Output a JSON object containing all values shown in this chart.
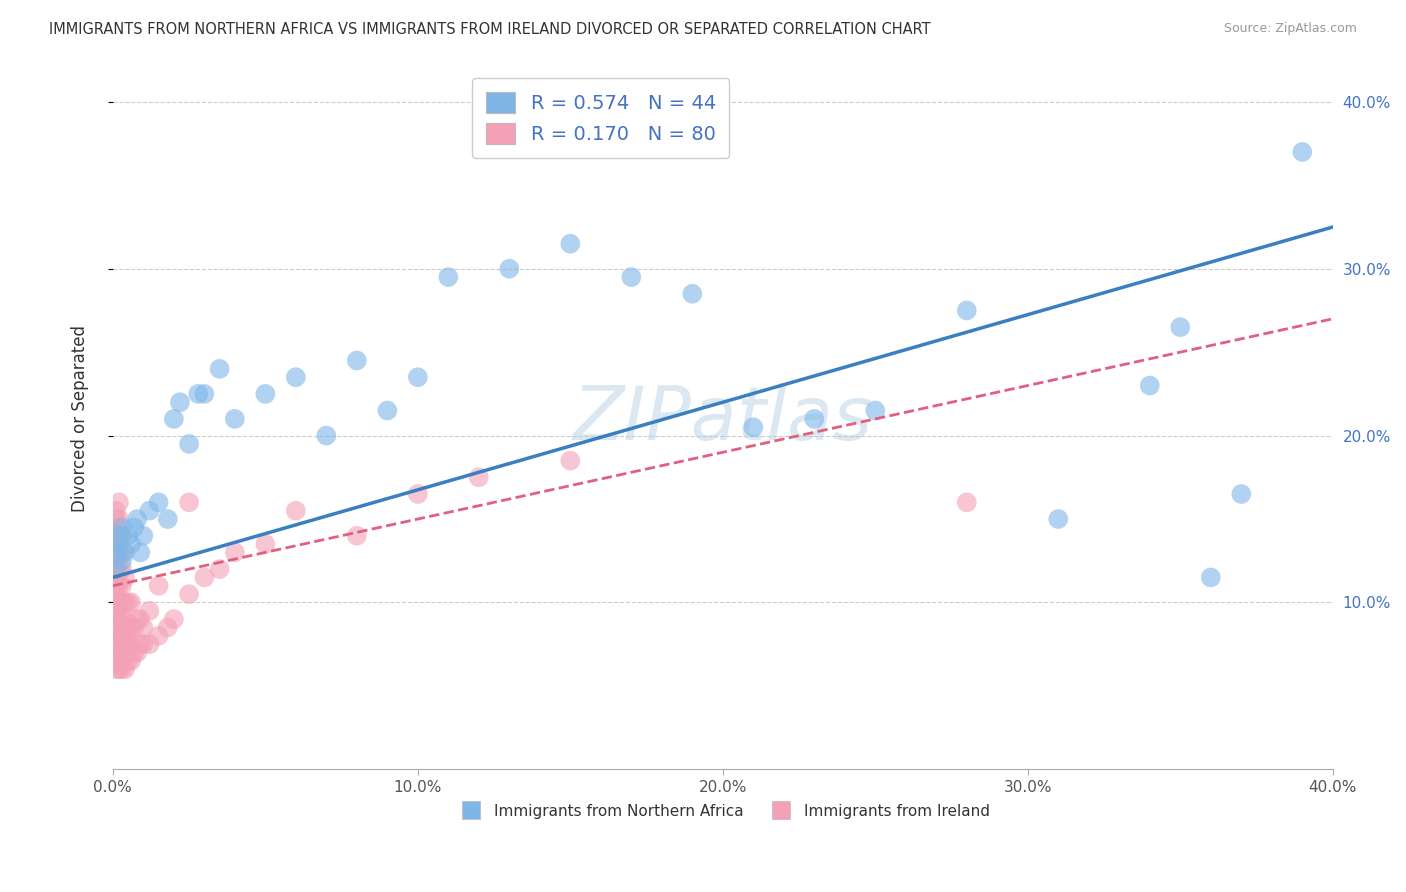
{
  "title": "IMMIGRANTS FROM NORTHERN AFRICA VS IMMIGRANTS FROM IRELAND DIVORCED OR SEPARATED CORRELATION CHART",
  "source": "Source: ZipAtlas.com",
  "xlabel_blue": "Immigrants from Northern Africa",
  "xlabel_pink": "Immigrants from Ireland",
  "ylabel": "Divorced or Separated",
  "watermark": "ZIPatlas",
  "blue_R": 0.574,
  "blue_N": 44,
  "pink_R": 0.17,
  "pink_N": 80,
  "xlim": [
    0.0,
    0.4
  ],
  "ylim": [
    0.0,
    0.42
  ],
  "blue_color": "#7EB6E8",
  "pink_color": "#F4A0B5",
  "blue_line_color": "#3A7FC1",
  "pink_line_color": "#E06080",
  "legend_text_color": "#4472C4",
  "blue_scatter_x": [
    0.001,
    0.001,
    0.002,
    0.002,
    0.003,
    0.003,
    0.004,
    0.005,
    0.006,
    0.007,
    0.008,
    0.009,
    0.01,
    0.012,
    0.015,
    0.018,
    0.02,
    0.022,
    0.025,
    0.028,
    0.03,
    0.035,
    0.04,
    0.05,
    0.06,
    0.07,
    0.08,
    0.09,
    0.1,
    0.11,
    0.13,
    0.15,
    0.17,
    0.19,
    0.21,
    0.23,
    0.25,
    0.28,
    0.31,
    0.34,
    0.35,
    0.36,
    0.37,
    0.39
  ],
  "blue_scatter_y": [
    0.12,
    0.13,
    0.14,
    0.135,
    0.125,
    0.145,
    0.13,
    0.14,
    0.135,
    0.145,
    0.15,
    0.13,
    0.14,
    0.155,
    0.16,
    0.15,
    0.21,
    0.22,
    0.195,
    0.225,
    0.225,
    0.24,
    0.21,
    0.225,
    0.235,
    0.2,
    0.245,
    0.215,
    0.235,
    0.295,
    0.3,
    0.315,
    0.295,
    0.285,
    0.205,
    0.21,
    0.215,
    0.275,
    0.15,
    0.23,
    0.265,
    0.115,
    0.165,
    0.37
  ],
  "pink_scatter_x": [
    0.001,
    0.001,
    0.001,
    0.001,
    0.001,
    0.001,
    0.001,
    0.001,
    0.001,
    0.001,
    0.001,
    0.001,
    0.001,
    0.001,
    0.001,
    0.001,
    0.001,
    0.001,
    0.001,
    0.002,
    0.002,
    0.002,
    0.002,
    0.002,
    0.002,
    0.002,
    0.002,
    0.002,
    0.002,
    0.002,
    0.002,
    0.003,
    0.003,
    0.003,
    0.003,
    0.003,
    0.003,
    0.003,
    0.003,
    0.003,
    0.004,
    0.004,
    0.004,
    0.004,
    0.004,
    0.004,
    0.005,
    0.005,
    0.005,
    0.005,
    0.006,
    0.006,
    0.006,
    0.006,
    0.007,
    0.007,
    0.008,
    0.008,
    0.009,
    0.009,
    0.01,
    0.01,
    0.012,
    0.012,
    0.015,
    0.015,
    0.018,
    0.02,
    0.025,
    0.025,
    0.03,
    0.035,
    0.04,
    0.05,
    0.06,
    0.08,
    0.1,
    0.12,
    0.15,
    0.28
  ],
  "pink_scatter_y": [
    0.06,
    0.07,
    0.075,
    0.08,
    0.085,
    0.09,
    0.095,
    0.1,
    0.105,
    0.11,
    0.115,
    0.12,
    0.125,
    0.13,
    0.135,
    0.14,
    0.145,
    0.15,
    0.155,
    0.06,
    0.065,
    0.07,
    0.08,
    0.09,
    0.1,
    0.11,
    0.12,
    0.13,
    0.14,
    0.15,
    0.16,
    0.06,
    0.07,
    0.08,
    0.09,
    0.1,
    0.11,
    0.12,
    0.13,
    0.14,
    0.06,
    0.07,
    0.08,
    0.09,
    0.1,
    0.115,
    0.065,
    0.075,
    0.085,
    0.1,
    0.065,
    0.075,
    0.085,
    0.1,
    0.07,
    0.085,
    0.07,
    0.09,
    0.075,
    0.09,
    0.075,
    0.085,
    0.075,
    0.095,
    0.08,
    0.11,
    0.085,
    0.09,
    0.105,
    0.16,
    0.115,
    0.12,
    0.13,
    0.135,
    0.155,
    0.14,
    0.165,
    0.175,
    0.185,
    0.16
  ],
  "blue_trendline": [
    0.115,
    0.325
  ],
  "pink_trendline": [
    0.11,
    0.27
  ]
}
